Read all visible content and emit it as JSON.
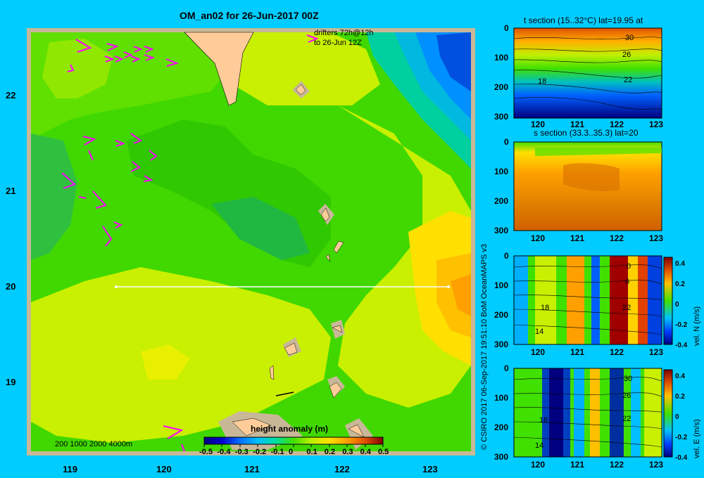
{
  "title": "OM_an02 for 26-Jun-2017 00Z",
  "drifter_note": [
    "drifters 72h@12h",
    "to 26-Jun 12Z"
  ],
  "map_lon_ticks": [
    "119",
    "120",
    "121",
    "122",
    "123"
  ],
  "map_lat_ticks": [
    "22",
    "21",
    "20",
    "19"
  ],
  "depth_legend": "200  1000  2000  4000m",
  "colorbar": {
    "title": "height anomaly  (m)",
    "ticks": [
      "-0.5",
      "-0.4",
      "-0.3",
      "-0.2",
      "-0.1",
      "0",
      "0.1",
      "0.2",
      "0.3",
      "0.4",
      "0.5"
    ]
  },
  "credit": "© CSIRO 2017   06-Sep-2017 19:51:10 BoM OceanMAPS v3",
  "panels": [
    {
      "title": "t section (15..32°C) lat=19.95 at",
      "contours": [
        "30",
        "26",
        "22",
        "18"
      ],
      "cb_label": "",
      "cb_ticks": []
    },
    {
      "title": "s section (33.3..35.3) lat=20",
      "contours": [],
      "cb_label": "",
      "cb_ticks": []
    },
    {
      "title": "",
      "contours": [
        "0",
        "6",
        "22",
        "18",
        "14"
      ],
      "cb_label": "vel. N  (m/s)",
      "cb_ticks": [
        "0.4",
        "0.2",
        "0",
        "-0.2",
        "-0.4"
      ]
    },
    {
      "title": "",
      "contours": [
        "30",
        "26",
        "22",
        "18",
        "14"
      ],
      "cb_label": "vel. E  (m/s)",
      "cb_ticks": [
        "0.4",
        "0.2",
        "0",
        "-0.2",
        "-0.4"
      ]
    }
  ],
  "panel_depth_ticks": [
    "0",
    "100",
    "200",
    "300"
  ],
  "panel_lon_ticks": [
    "120",
    "121",
    "122",
    "123"
  ]
}
